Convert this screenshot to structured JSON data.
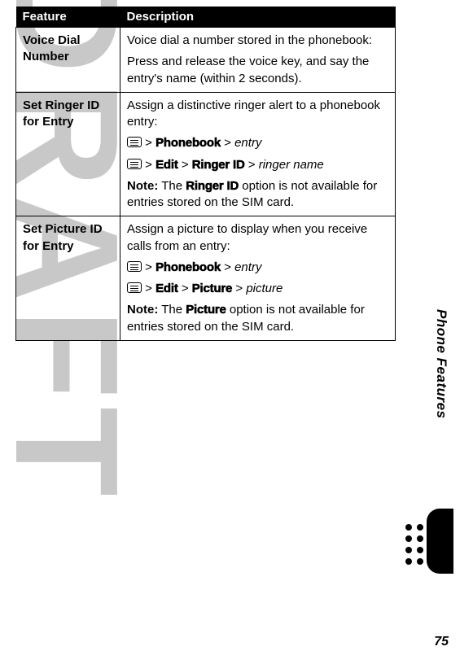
{
  "watermark": "DRAFT",
  "header": {
    "feature": "Feature",
    "description": "Description"
  },
  "rows": [
    {
      "feature": "Voice Dial Number",
      "desc": {
        "p1_pre": "Voice dial a number stored in the phonebook:",
        "p2": "Press and release the voice key, and say the entry's name (within 2 seconds)."
      }
    },
    {
      "feature": "Set Ringer ID for Entry",
      "desc": {
        "p1": "Assign a distinctive ringer alert to a phonebook entry:",
        "nav1_a": "Phonebook",
        "nav1_b": "entry",
        "nav2_a": "Edit",
        "nav2_b": "Ringer ID",
        "nav2_c": "ringer name",
        "note_label": "Note:",
        "note_pre": " The ",
        "note_term": "Ringer ID",
        "note_post": " option is not available for entries stored on the SIM card."
      }
    },
    {
      "feature": "Set Picture ID for Entry",
      "desc": {
        "p1": "Assign a picture to display when you receive calls from an entry:",
        "nav1_a": "Phonebook",
        "nav1_b": "entry",
        "nav2_a": "Edit",
        "nav2_b": "Picture",
        "nav2_c": "picture",
        "note_label": "Note:",
        "note_pre": " The ",
        "note_term": "Picture",
        "note_post": " option is not available for entries stored on the SIM card."
      }
    }
  ],
  "side_label": "Phone Features",
  "page_num": "75",
  "gt": ">"
}
